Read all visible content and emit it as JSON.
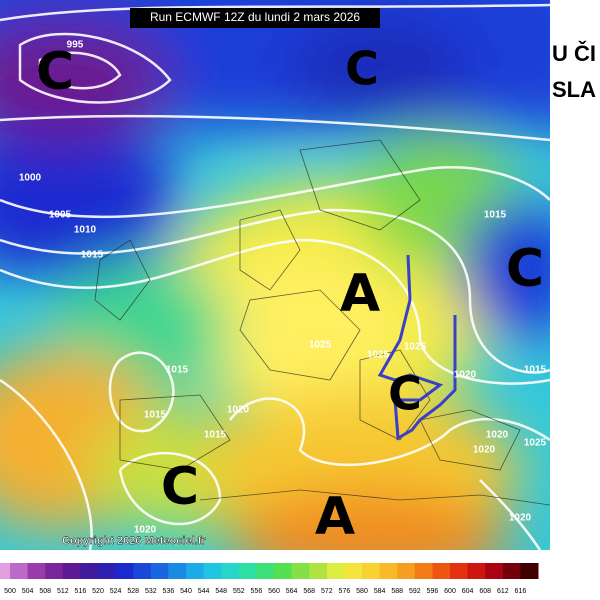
{
  "header": {
    "title": "Run ECMWF 12Z du lundi 2 mars 2026"
  },
  "pressure_centers": [
    "C",
    "C",
    "C",
    "A",
    "C",
    "C",
    "A"
  ],
  "isobar_labels": [
    "995",
    "1000",
    "1005",
    "1010",
    "1015",
    "1015",
    "1025",
    "1025",
    "1025",
    "1020",
    "1015",
    "1015",
    "1015",
    "1020",
    "1015",
    "1020",
    "1020",
    "1025",
    "1020",
    "1020"
  ],
  "copyright": "Copyright 2026 Meteociel.fr",
  "side_text": [
    "U ČI",
    "SLA"
  ],
  "color_scale": [
    "500",
    "504",
    "508",
    "512",
    "516",
    "520",
    "524",
    "528",
    "532",
    "536",
    "540",
    "544",
    "548",
    "552",
    "556",
    "560",
    "564",
    "568",
    "572",
    "576",
    "580",
    "584",
    "588",
    "592",
    "596",
    "600",
    "604",
    "608",
    "612",
    "616"
  ]
}
